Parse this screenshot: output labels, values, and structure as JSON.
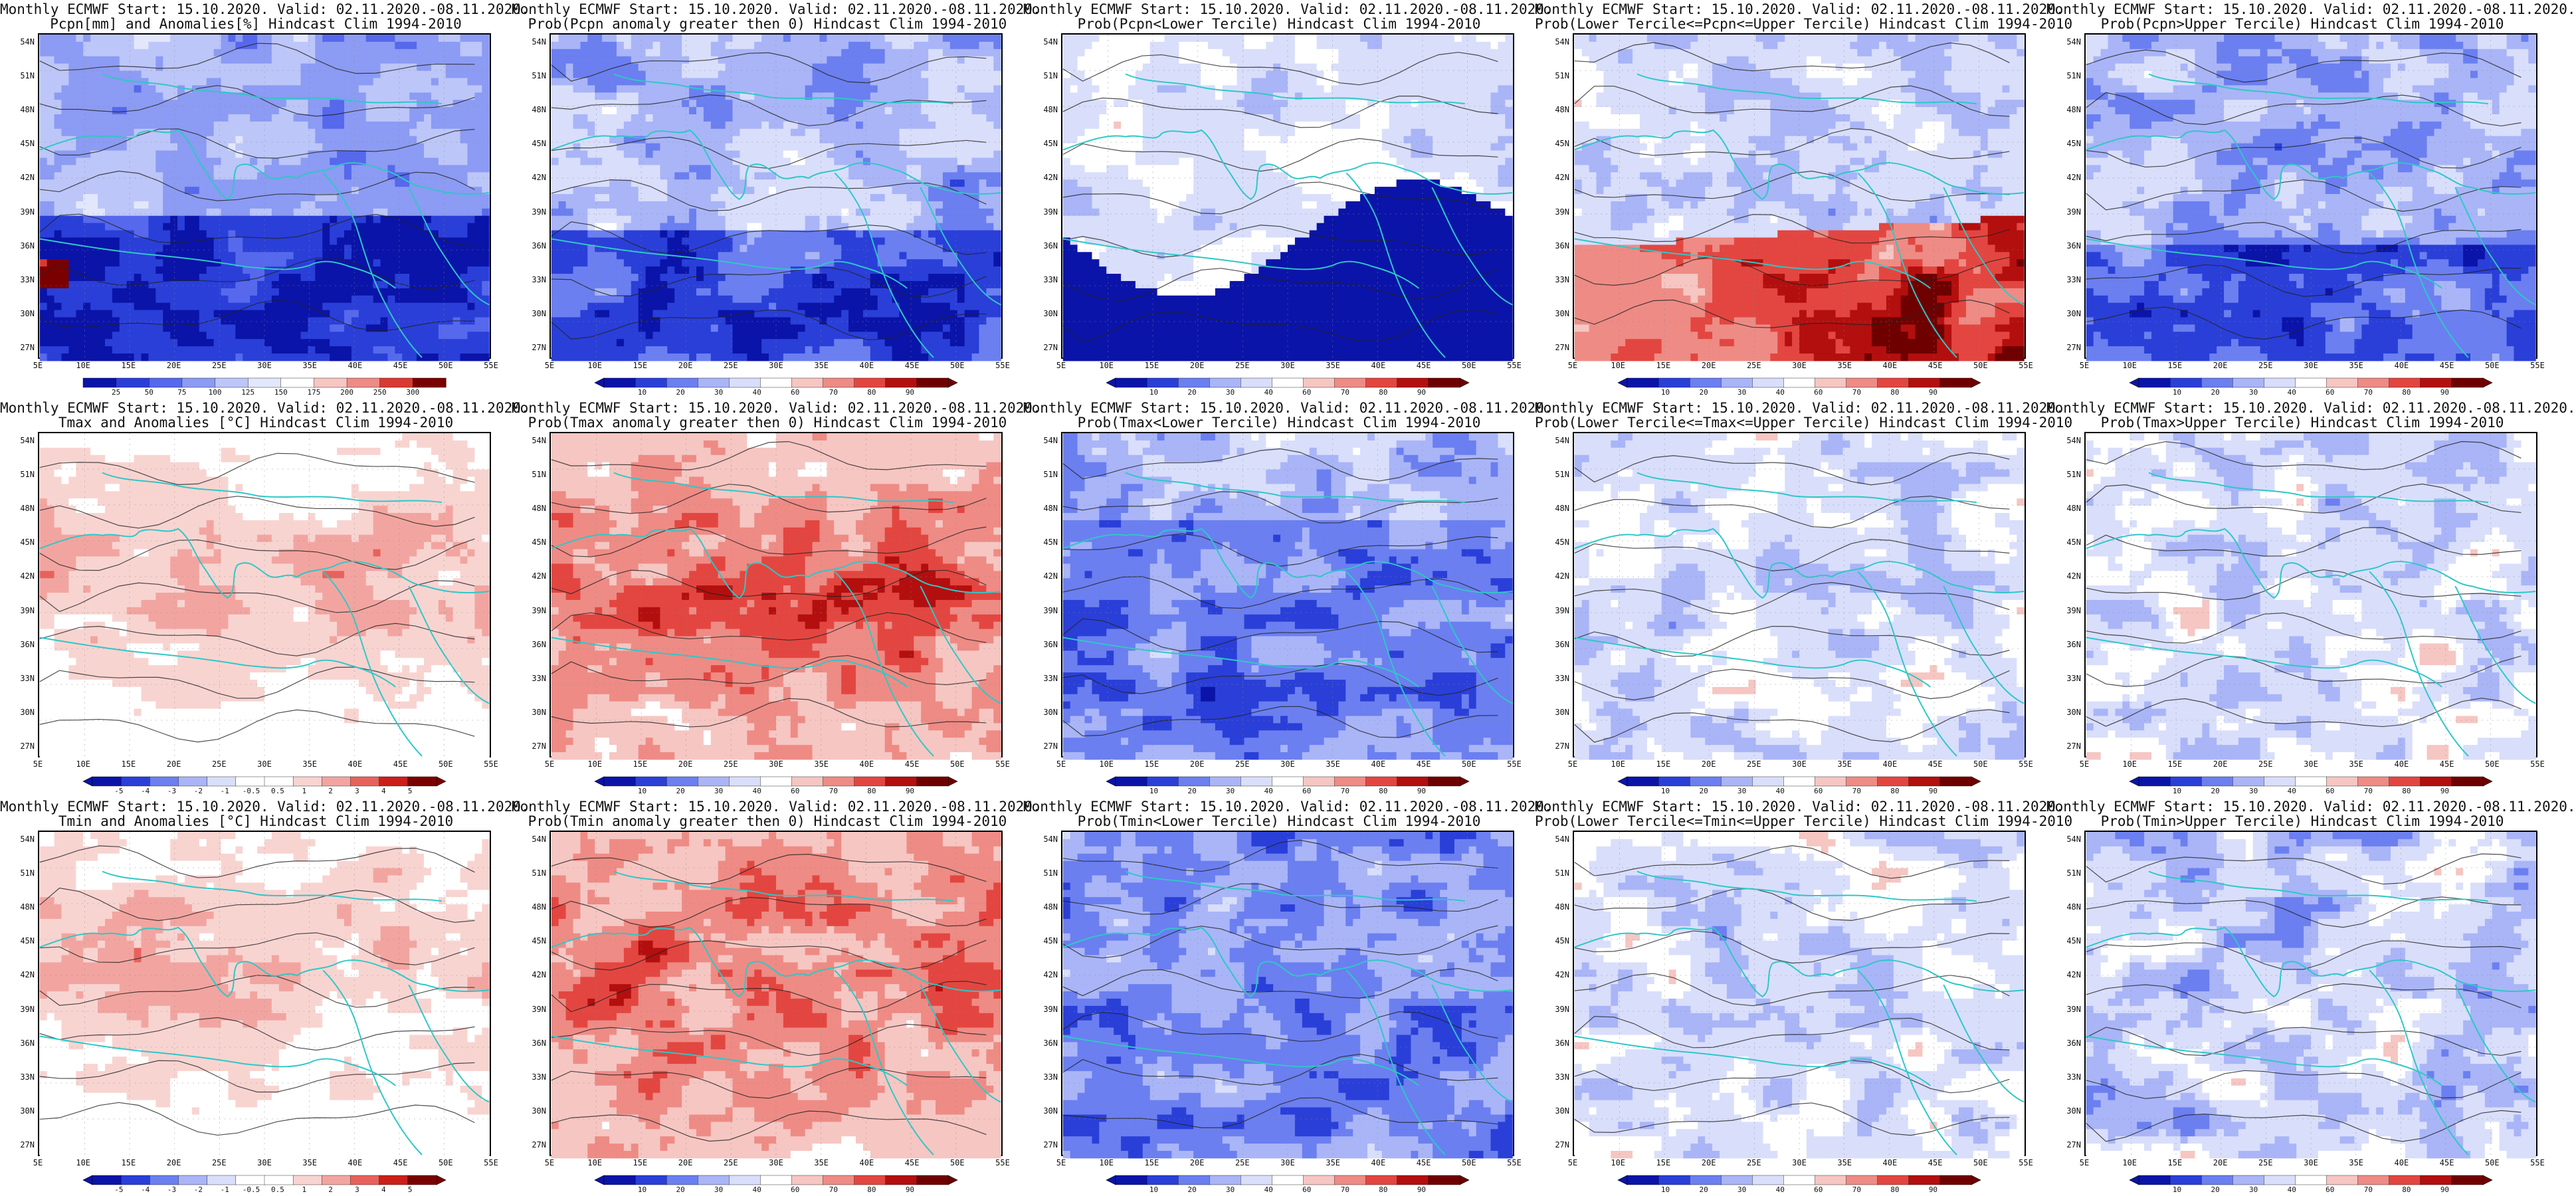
{
  "colors": {
    "blue_dark": "#0b14a8",
    "blue_mid": "#3a4fe0",
    "blue_light": "#b8c2f5",
    "red_light": "#f4b3b0",
    "red_mid": "#e8443f",
    "red_dark": "#7a0000",
    "coast": "#2fc7c7",
    "contour": "#222222"
  },
  "lat_labels": [
    "54N",
    "51N",
    "48N",
    "45N",
    "42N",
    "39N",
    "36N",
    "33N",
    "30N",
    "27N"
  ],
  "lon_labels": [
    "5E",
    "10E",
    "15E",
    "20E",
    "25E",
    "30E",
    "35E",
    "40E",
    "45E",
    "50E",
    "55E"
  ],
  "panels": [
    {
      "title1": "Monthly ECMWF Start: 15.10.2020. Valid: 02.11.2020.-08.11.2020.",
      "title2": "Pcpn[mm] and Anomalies[%] Hindcast Clim 1994-2010",
      "ticks": [
        "25",
        "50",
        "75",
        "100",
        "125",
        "150",
        "175",
        "200",
        "250",
        "300"
      ],
      "scale": "pcpn_anom",
      "pattern": "pcpn_anom",
      "cbar_arrows": false
    },
    {
      "title1": "Monthly ECMWF Start: 15.10.2020. Valid: 02.11.2020.-08.11.2020.",
      "title2": "Prob(Pcpn anomaly greater then 0) Hindcast Clim 1994-2010",
      "ticks": [
        "10",
        "20",
        "30",
        "40",
        "60",
        "70",
        "80",
        "90"
      ],
      "scale": "prob",
      "pattern": "pcpn_prob_pos",
      "cbar_arrows": true
    },
    {
      "title1": "Monthly ECMWF Start: 15.10.2020. Valid: 02.11.2020.-08.11.2020.",
      "title2": "Prob(Pcpn<Lower Tercile) Hindcast Clim 1994-2010",
      "ticks": [
        "10",
        "20",
        "30",
        "40",
        "60",
        "70",
        "80",
        "90"
      ],
      "scale": "prob",
      "pattern": "pcpn_lower",
      "cbar_arrows": true
    },
    {
      "title1": "Monthly ECMWF Start: 15.10.2020. Valid: 02.11.2020.-08.11.2020.",
      "title2": "Prob(Lower Tercile<=Pcpn<=Upper Tercile) Hindcast Clim 1994-2010",
      "ticks": [
        "10",
        "20",
        "30",
        "40",
        "60",
        "70",
        "80",
        "90"
      ],
      "scale": "prob",
      "pattern": "pcpn_middle",
      "cbar_arrows": true
    },
    {
      "title1": "Monthly ECMWF Start: 15.10.2020. Valid: 02.11.2020.-08.11.2020.",
      "title2": "Prob(Pcpn>Upper Tercile) Hindcast Clim 1994-2010",
      "ticks": [
        "10",
        "20",
        "30",
        "40",
        "60",
        "70",
        "80",
        "90"
      ],
      "scale": "prob",
      "pattern": "pcpn_upper",
      "cbar_arrows": true
    },
    {
      "title1": "Monthly ECMWF Start: 15.10.2020. Valid: 02.11.2020.-08.11.2020.",
      "title2": "Tmax and Anomalies [°C] Hindcast Clim 1994-2010",
      "ticks": [
        "-5",
        "-4",
        "-3",
        "-2",
        "-1",
        "-0.5",
        "0.5",
        "1",
        "2",
        "3",
        "4",
        "5"
      ],
      "scale": "temp_anom",
      "pattern": "tmax_anom",
      "cbar_arrows": true
    },
    {
      "title1": "Monthly ECMWF Start: 15.10.2020. Valid: 02.11.2020.-08.11.2020.",
      "title2": "Prob(Tmax anomaly greater then 0) Hindcast Clim 1994-2010",
      "ticks": [
        "10",
        "20",
        "30",
        "40",
        "60",
        "70",
        "80",
        "90"
      ],
      "scale": "prob",
      "pattern": "tmax_prob_pos",
      "cbar_arrows": true
    },
    {
      "title1": "Monthly ECMWF Start: 15.10.2020. Valid: 02.11.2020.-08.11.2020.",
      "title2": "Prob(Tmax<Lower Tercile) Hindcast Clim 1994-2010",
      "ticks": [
        "10",
        "20",
        "30",
        "40",
        "60",
        "70",
        "80",
        "90"
      ],
      "scale": "prob",
      "pattern": "tmax_lower",
      "cbar_arrows": true
    },
    {
      "title1": "Monthly ECMWF Start: 15.10.2020. Valid: 02.11.2020.-08.11.2020.",
      "title2": "Prob(Lower Tercile<=Tmax<=Upper Tercile) Hindcast Clim 1994-2010",
      "ticks": [
        "10",
        "20",
        "30",
        "40",
        "60",
        "70",
        "80",
        "90"
      ],
      "scale": "prob",
      "pattern": "tmax_middle",
      "cbar_arrows": true
    },
    {
      "title1": "Monthly ECMWF Start: 15.10.2020. Valid: 02.11.2020.-08.11.2020.",
      "title2": "Prob(Tmax>Upper Tercile) Hindcast Clim 1994-2010",
      "ticks": [
        "10",
        "20",
        "30",
        "40",
        "60",
        "70",
        "80",
        "90"
      ],
      "scale": "prob",
      "pattern": "tmax_upper",
      "cbar_arrows": true
    },
    {
      "title1": "Monthly ECMWF Start: 15.10.2020. Valid: 02.11.2020.-08.11.2020.",
      "title2": "Tmin and Anomalies [°C] Hindcast Clim 1994-2010",
      "ticks": [
        "-5",
        "-4",
        "-3",
        "-2",
        "-1",
        "-0.5",
        "0.5",
        "1",
        "2",
        "3",
        "4",
        "5"
      ],
      "scale": "temp_anom",
      "pattern": "tmin_anom",
      "cbar_arrows": true
    },
    {
      "title1": "Monthly ECMWF Start: 15.10.2020. Valid: 02.11.2020.-08.11.2020.",
      "title2": "Prob(Tmin anomaly greater then 0) Hindcast Clim 1994-2010",
      "ticks": [
        "10",
        "20",
        "30",
        "40",
        "60",
        "70",
        "80",
        "90"
      ],
      "scale": "prob",
      "pattern": "tmin_prob_pos",
      "cbar_arrows": true
    },
    {
      "title1": "Monthly ECMWF Start: 15.10.2020. Valid: 02.11.2020.-08.11.2020.",
      "title2": "Prob(Tmin<Lower Tercile) Hindcast Clim 1994-2010",
      "ticks": [
        "10",
        "20",
        "30",
        "40",
        "60",
        "70",
        "80",
        "90"
      ],
      "scale": "prob",
      "pattern": "tmin_lower",
      "cbar_arrows": true
    },
    {
      "title1": "Monthly ECMWF Start: 15.10.2020. Valid: 02.11.2020.-08.11.2020.",
      "title2": "Prob(Lower Tercile<=Tmin<=Upper Tercile) Hindcast Clim 1994-2010",
      "ticks": [
        "10",
        "20",
        "30",
        "40",
        "60",
        "70",
        "80",
        "90"
      ],
      "scale": "prob",
      "pattern": "tmin_middle",
      "cbar_arrows": true
    },
    {
      "title1": "Monthly ECMWF Start: 15.10.2020. Valid: 02.11.2020.-08.11.2020.",
      "title2": "Prob(Tmin>Upper Tercile) Hindcast Clim 1994-2010",
      "ticks": [
        "10",
        "20",
        "30",
        "40",
        "60",
        "70",
        "80",
        "90"
      ],
      "scale": "prob",
      "pattern": "tmin_upper",
      "cbar_arrows": true
    }
  ]
}
